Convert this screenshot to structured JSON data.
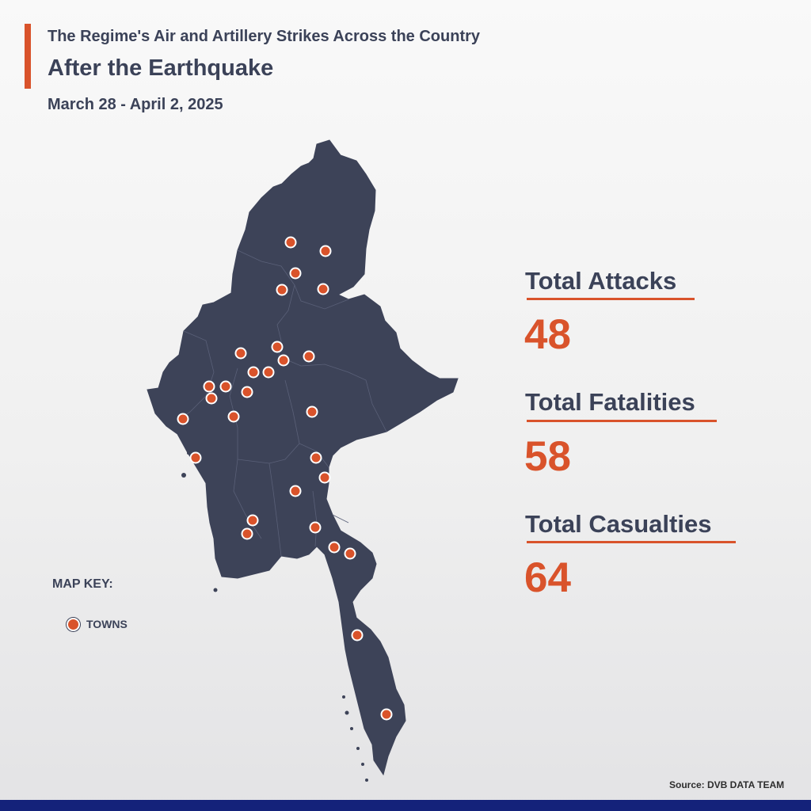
{
  "header": {
    "title_line1": "The Regime's Air and Artillery Strikes Across the Country",
    "title_line2": "After the Earthquake",
    "date_range": "March 28 - April 2, 2025"
  },
  "stats": [
    {
      "label": "Total Attacks",
      "value": "48"
    },
    {
      "label": "Total Fatalities",
      "value": "58"
    },
    {
      "label": "Total Casualties",
      "value": "64"
    }
  ],
  "map_key": {
    "title": "MAP KEY:",
    "towns_label": "TOWNS"
  },
  "source": "Source: DVB DATA TEAM",
  "colors": {
    "accent": "#d9532b",
    "map_fill": "#3d4358",
    "text": "#3b4258",
    "bottom_bar": "#14227a"
  }
}
